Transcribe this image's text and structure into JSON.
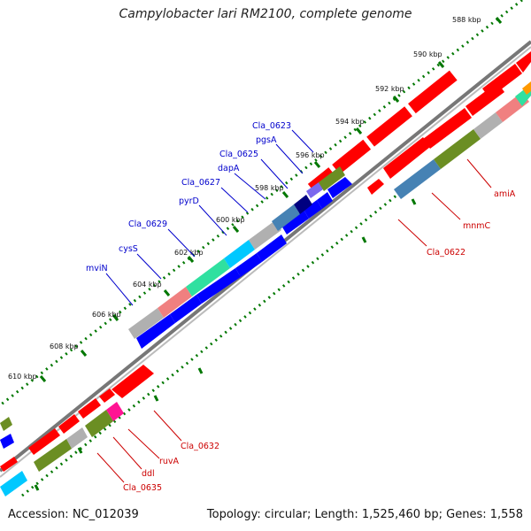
{
  "title": "Campylobacter lari RM2100, complete genome",
  "accession_text": "Accession: NC_012039",
  "summary_text": "Topology: circular; Length: 1,525,460 bp; Genes: 1,558",
  "tick_labels": [
    "588 kbp",
    "590 kbp",
    "592 kbp",
    "594 kbp",
    "596 kbp",
    "598 kbp",
    "600 kbp",
    "602 kbp",
    "604 kbp",
    "606 kbp",
    "608 kbp",
    "610 kbp"
  ],
  "labels_blue": [
    "Cla_0623",
    "pgsA",
    "Cla_0625",
    "dapA",
    "Cla_0627",
    "pyrD",
    "Cla_0629",
    "cysS",
    "mviN"
  ],
  "labels_red_right": [
    "amiA",
    "mnmC",
    "Cla_0622"
  ],
  "labels_red_left": [
    "Cla_0632",
    "ruvA",
    "ddl",
    "Cla_0635"
  ],
  "colors": {
    "backbone": "#888888",
    "forward_red": "#ff0000",
    "reverse_blue": "#0000ff",
    "olive": "#6b8e23",
    "grey": "#b0b0b0",
    "label_blue": "#0000cc",
    "label_red": "#cc0000",
    "dotted_green": "#007700",
    "cyan": "#00c8ff",
    "teal_green": "#30e0a0",
    "pink": "#f08080",
    "magenta": "#ff1493",
    "steelblue": "#4682b4",
    "purple": "#7b68ee",
    "orange": "#ff9900"
  }
}
